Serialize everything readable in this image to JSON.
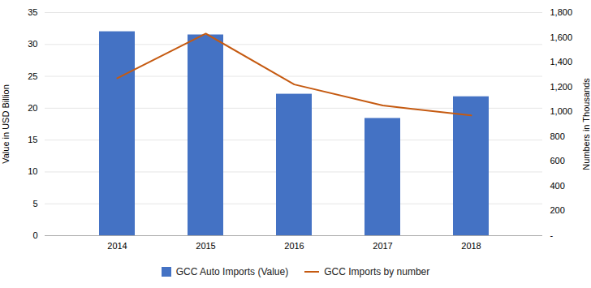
{
  "chart_data": {
    "type": "bar",
    "categories": [
      "2014",
      "2015",
      "2016",
      "2017",
      "2018"
    ],
    "series": [
      {
        "name": "GCC Auto Imports (Value)",
        "type": "bar",
        "color": "#4472C4",
        "values": [
          32.0,
          31.5,
          22.2,
          18.4,
          21.8
        ]
      },
      {
        "name": "GCC Imports by number",
        "type": "line",
        "color": "#C55A11",
        "axis": "y2",
        "values": [
          1270,
          1630,
          1220,
          1050,
          970
        ]
      }
    ],
    "ylabel": "Value in USD Billion",
    "y2label": "Numbers in Thousands",
    "ylim": [
      0,
      35
    ],
    "yticks": [
      0,
      5,
      10,
      15,
      20,
      25,
      30,
      35
    ],
    "y2lim": [
      0,
      1800
    ],
    "y2ticks": [
      {
        "value": 0,
        "label": "-"
      },
      200,
      400,
      600,
      800,
      {
        "value": 1000,
        "label": "1,000"
      },
      {
        "value": 1200,
        "label": "1,200"
      },
      {
        "value": 1400,
        "label": "1,400"
      },
      {
        "value": 1600,
        "label": "1,600"
      },
      {
        "value": 1800,
        "label": "1,800"
      }
    ],
    "grid": true,
    "legend": "bottom"
  }
}
